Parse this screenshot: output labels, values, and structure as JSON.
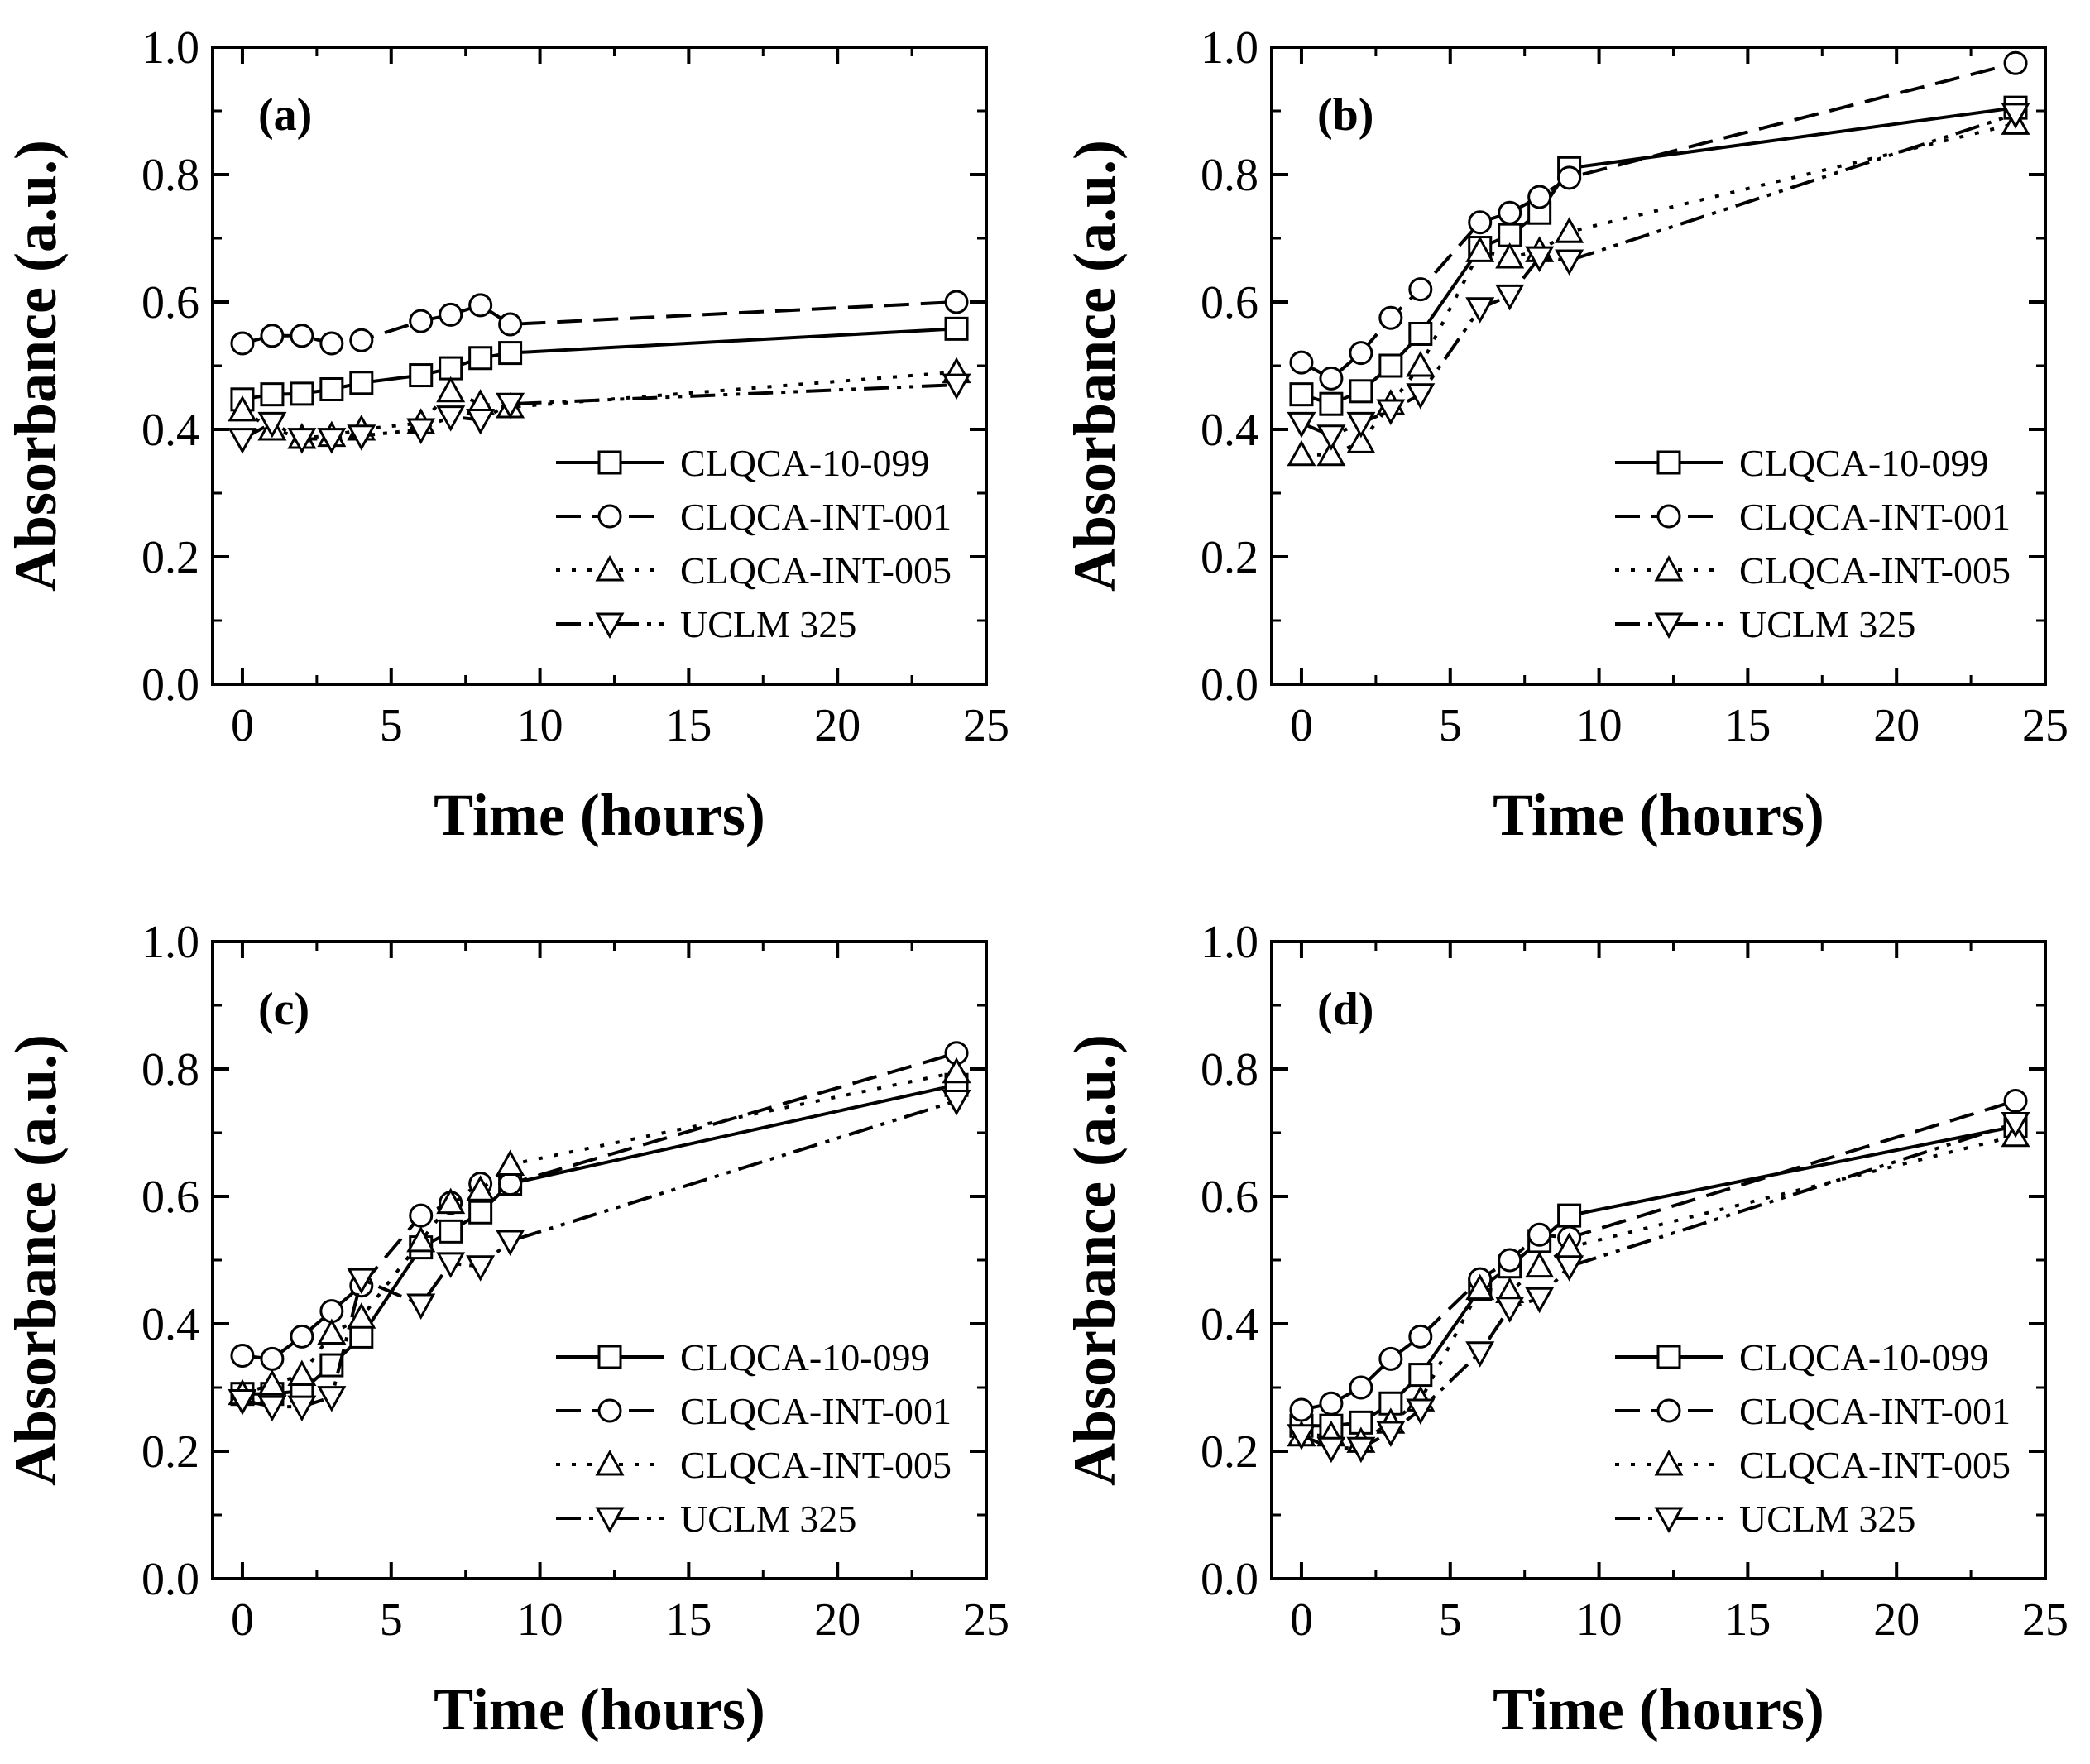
{
  "chart_data": [
    {
      "type": "line",
      "panel_label": "(a)",
      "xlabel": "Time (hours)",
      "ylabel": "Absorbance (a.u.)",
      "xlim": [
        -1,
        25
      ],
      "ylim": [
        0,
        1
      ],
      "xticks": [
        "0",
        "5",
        "10",
        "15",
        "20",
        "25"
      ],
      "yticks": [
        "0.0",
        "0.2",
        "0.4",
        "0.6",
        "0.8",
        "1.0"
      ],
      "legend_position": "bottom-right",
      "series": [
        {
          "name": "CLQCA-10-099",
          "marker": "square",
          "dash": "solid",
          "x": [
            0,
            1,
            2,
            3,
            4,
            6,
            7,
            8,
            9,
            24
          ],
          "values": [
            0.447,
            0.455,
            0.456,
            0.463,
            0.473,
            0.485,
            0.496,
            0.512,
            0.52,
            0.558
          ]
        },
        {
          "name": "CLQCA-INT-001",
          "marker": "circle",
          "dash": "dash",
          "x": [
            0,
            1,
            2,
            3,
            4,
            6,
            7,
            8,
            9,
            24
          ],
          "values": [
            0.535,
            0.547,
            0.547,
            0.535,
            0.54,
            0.57,
            0.58,
            0.595,
            0.565,
            0.6
          ]
        },
        {
          "name": "CLQCA-INT-005",
          "marker": "triangle-up",
          "dash": "dot",
          "x": [
            0,
            1,
            2,
            3,
            4,
            6,
            7,
            8,
            9,
            24
          ],
          "values": [
            0.43,
            0.4,
            0.387,
            0.39,
            0.4,
            0.41,
            0.46,
            0.44,
            0.435,
            0.49
          ]
        },
        {
          "name": "UCLM 325",
          "marker": "triangle-down",
          "dash": "dashdotdot",
          "x": [
            0,
            1,
            2,
            3,
            4,
            6,
            7,
            8,
            9,
            24
          ],
          "values": [
            0.385,
            0.41,
            0.385,
            0.385,
            0.39,
            0.4,
            0.42,
            0.415,
            0.44,
            0.47
          ]
        }
      ]
    },
    {
      "type": "line",
      "panel_label": "(b)",
      "xlabel": "Time (hours)",
      "ylabel": "Absorbance (a.u.)",
      "xlim": [
        -1,
        25
      ],
      "ylim": [
        0,
        1
      ],
      "xticks": [
        "0",
        "5",
        "10",
        "15",
        "20",
        "25"
      ],
      "yticks": [
        "0.0",
        "0.2",
        "0.4",
        "0.6",
        "0.8",
        "1.0"
      ],
      "legend_position": "bottom-right",
      "series": [
        {
          "name": "CLQCA-10-099",
          "marker": "square",
          "dash": "solid",
          "x": [
            0,
            1,
            2,
            3,
            4,
            6,
            7,
            8,
            9,
            24
          ],
          "values": [
            0.455,
            0.44,
            0.46,
            0.5,
            0.55,
            0.685,
            0.705,
            0.74,
            0.81,
            0.905
          ]
        },
        {
          "name": "CLQCA-INT-001",
          "marker": "circle",
          "dash": "dash",
          "x": [
            0,
            1,
            2,
            3,
            4,
            6,
            7,
            8,
            9,
            24
          ],
          "values": [
            0.505,
            0.48,
            0.52,
            0.575,
            0.62,
            0.725,
            0.74,
            0.765,
            0.795,
            0.975
          ]
        },
        {
          "name": "CLQCA-INT-005",
          "marker": "triangle-up",
          "dash": "dot",
          "x": [
            0,
            1,
            2,
            3,
            4,
            6,
            7,
            8,
            9,
            24
          ],
          "values": [
            0.36,
            0.36,
            0.38,
            0.44,
            0.5,
            0.68,
            0.67,
            0.68,
            0.71,
            0.88
          ]
        },
        {
          "name": "UCLM 325",
          "marker": "triangle-down",
          "dash": "dashdotdot",
          "x": [
            0,
            1,
            2,
            3,
            4,
            6,
            7,
            8,
            9,
            24
          ],
          "values": [
            0.41,
            0.39,
            0.41,
            0.43,
            0.455,
            0.59,
            0.61,
            0.67,
            0.665,
            0.895
          ]
        }
      ]
    },
    {
      "type": "line",
      "panel_label": "(c)",
      "xlabel": "Time (hours)",
      "ylabel": "Absorbance (a.u.)",
      "xlim": [
        -1,
        25
      ],
      "ylim": [
        0,
        1
      ],
      "xticks": [
        "0",
        "5",
        "10",
        "15",
        "20",
        "25"
      ],
      "yticks": [
        "0.0",
        "0.2",
        "0.4",
        "0.6",
        "0.8",
        "1.0"
      ],
      "legend_position": "bottom-right",
      "series": [
        {
          "name": "CLQCA-10-099",
          "marker": "square",
          "dash": "solid",
          "x": [
            0,
            1,
            2,
            3,
            4,
            6,
            7,
            8,
            9,
            24
          ],
          "values": [
            0.29,
            0.29,
            0.295,
            0.335,
            0.38,
            0.52,
            0.545,
            0.575,
            0.62,
            0.775
          ]
        },
        {
          "name": "CLQCA-INT-001",
          "marker": "circle",
          "dash": "dash",
          "x": [
            0,
            1,
            2,
            3,
            4,
            6,
            7,
            8,
            9,
            24
          ],
          "values": [
            0.35,
            0.345,
            0.38,
            0.42,
            0.46,
            0.57,
            0.59,
            0.62,
            0.62,
            0.825
          ]
        },
        {
          "name": "CLQCA-INT-005",
          "marker": "triangle-up",
          "dash": "dot",
          "x": [
            0,
            1,
            2,
            3,
            4,
            6,
            7,
            8,
            9,
            24
          ],
          "values": [
            0.29,
            0.305,
            0.32,
            0.385,
            0.41,
            0.53,
            0.59,
            0.61,
            0.65,
            0.795
          ]
        },
        {
          "name": "UCLM 325",
          "marker": "triangle-down",
          "dash": "dashdotdot",
          "x": [
            0,
            1,
            2,
            3,
            4,
            6,
            7,
            8,
            9,
            24
          ],
          "values": [
            0.28,
            0.27,
            0.27,
            0.285,
            0.47,
            0.43,
            0.495,
            0.49,
            0.53,
            0.75
          ]
        }
      ]
    },
    {
      "type": "line",
      "panel_label": "(d)",
      "xlabel": "Time (hours)",
      "ylabel": "Absorbance (a.u.)",
      "xlim": [
        -1,
        25
      ],
      "ylim": [
        0,
        1
      ],
      "xticks": [
        "0",
        "5",
        "10",
        "15",
        "20",
        "25"
      ],
      "yticks": [
        "0.0",
        "0.2",
        "0.4",
        "0.6",
        "0.8",
        "1.0"
      ],
      "legend_position": "bottom-right",
      "series": [
        {
          "name": "CLQCA-10-099",
          "marker": "square",
          "dash": "solid",
          "x": [
            0,
            1,
            2,
            3,
            4,
            6,
            7,
            8,
            9,
            24
          ],
          "values": [
            0.24,
            0.24,
            0.245,
            0.275,
            0.32,
            0.455,
            0.49,
            0.53,
            0.57,
            0.71
          ]
        },
        {
          "name": "CLQCA-INT-001",
          "marker": "circle",
          "dash": "dash",
          "x": [
            0,
            1,
            2,
            3,
            4,
            6,
            7,
            8,
            9,
            24
          ],
          "values": [
            0.265,
            0.275,
            0.3,
            0.345,
            0.38,
            0.47,
            0.5,
            0.54,
            0.535,
            0.75
          ]
        },
        {
          "name": "CLQCA-INT-005",
          "marker": "triangle-up",
          "dash": "dot",
          "x": [
            0,
            1,
            2,
            3,
            4,
            6,
            7,
            8,
            9,
            24
          ],
          "values": [
            0.225,
            0.225,
            0.215,
            0.245,
            0.28,
            0.455,
            0.45,
            0.49,
            0.52,
            0.695
          ]
        },
        {
          "name": "UCLM 325",
          "marker": "triangle-down",
          "dash": "dashdotdot",
          "x": [
            0,
            1,
            2,
            3,
            4,
            6,
            7,
            8,
            9,
            24
          ],
          "values": [
            0.225,
            0.205,
            0.205,
            0.23,
            0.265,
            0.355,
            0.425,
            0.44,
            0.49,
            0.715
          ]
        }
      ]
    }
  ]
}
